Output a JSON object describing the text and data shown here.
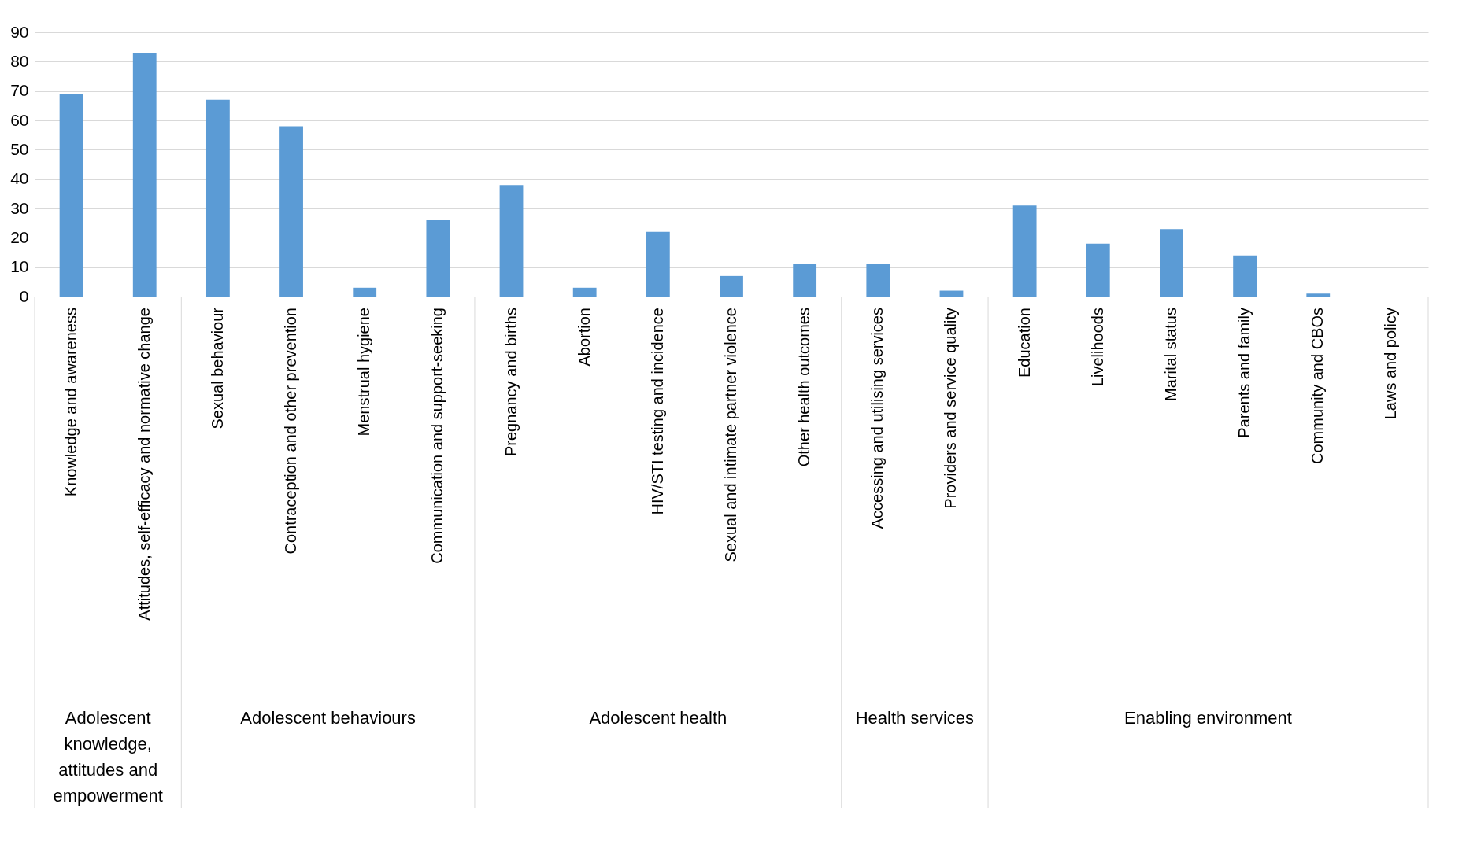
{
  "chart_data": {
    "type": "bar",
    "categories": [
      "Knowledge and awareness",
      "Attitudes, self-efficacy and normative change",
      "Sexual behaviour",
      "Contraception and other prevention",
      "Menstrual hygiene",
      "Communication and support-seeking",
      "Pregnancy and births",
      "Abortion",
      "HIV/STI testing and incidence",
      "Sexual and intimate partner violence",
      "Other health outcomes",
      "Accessing and utilising services",
      "Providers and service quality",
      "Education",
      "Livelihoods",
      "Marital status",
      "Parents and family",
      "Community and CBOs",
      "Laws and policy"
    ],
    "values": [
      69,
      83,
      67,
      58,
      3,
      26,
      38,
      3,
      22,
      7,
      11,
      11,
      2,
      31,
      18,
      23,
      14,
      1,
      0
    ],
    "color": "#5b9bd5",
    "ylim": [
      0,
      90
    ],
    "yticks": [
      0,
      10,
      20,
      30,
      40,
      50,
      60,
      70,
      80,
      90
    ],
    "grid": "y",
    "annotations": [
      "Adolescent knowledge, attitudes and empowerment",
      "Adolescent behaviours",
      "Adolescent health",
      "Health services",
      "Enabling environment"
    ]
  }
}
